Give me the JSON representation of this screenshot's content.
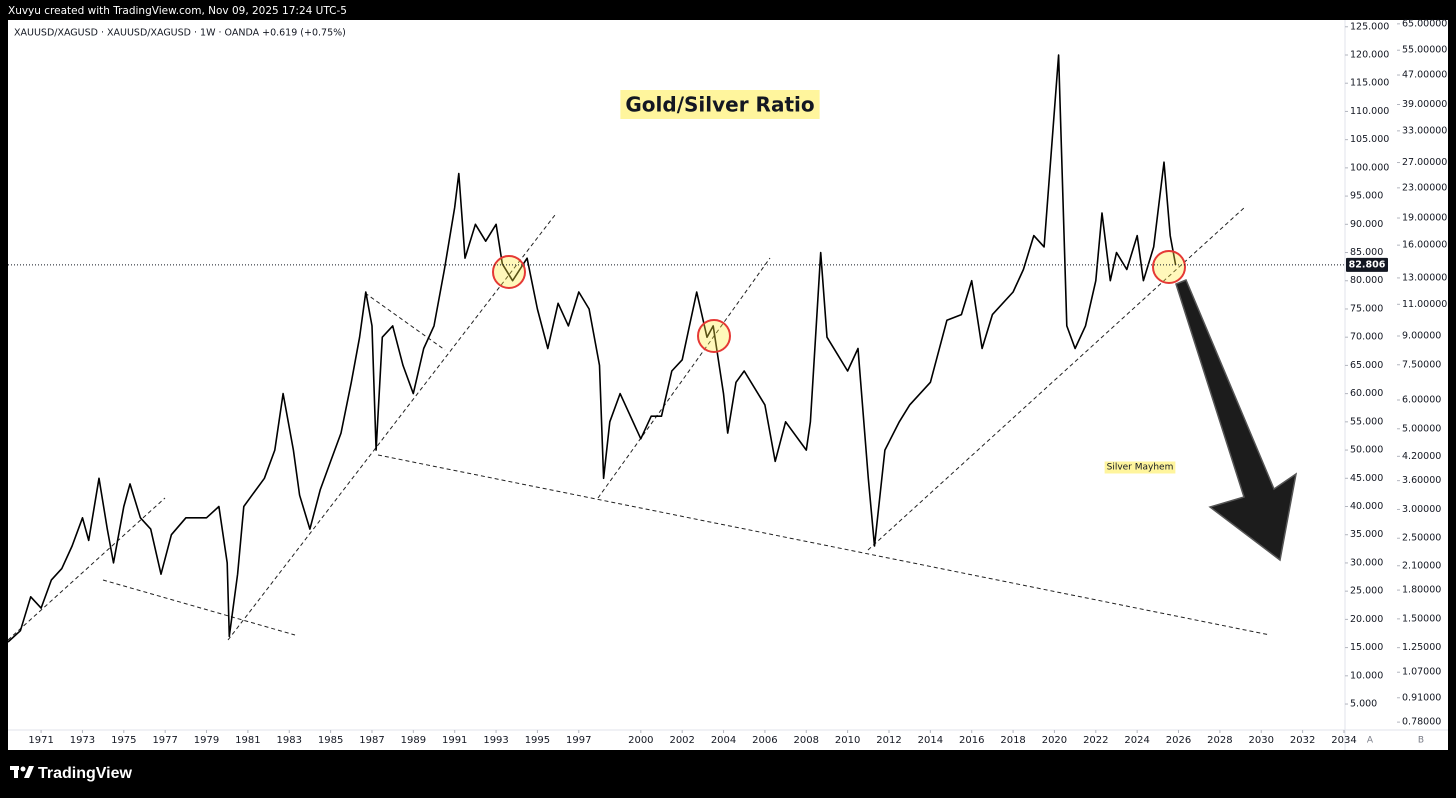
{
  "header": {
    "credit": "Xuvyu created with TradingView.com, Nov 09, 2025 17:24 UTC-5"
  },
  "chart_data": {
    "type": "line",
    "title": "Gold/Silver Ratio",
    "subtitle": "XAUUSD/XAGUSD · XAUUSD/XAGUSD · 1W · OANDA  +0.619 (+0.75%)",
    "annotations": [
      "Silver Mayhem"
    ],
    "scale_buttons": [
      "A",
      "B"
    ],
    "color": "#000000",
    "grid": false,
    "x": [
      1969.4,
      1970.0,
      1970.5,
      1971.0,
      1971.5,
      1972.0,
      1972.5,
      1973.0,
      1973.3,
      1973.8,
      1974.2,
      1974.5,
      1975.0,
      1975.3,
      1975.8,
      1976.3,
      1976.8,
      1977.3,
      1978.0,
      1979.0,
      1979.6,
      1980.0,
      1980.1,
      1980.5,
      1980.8,
      1981.2,
      1981.8,
      1982.3,
      1982.7,
      1983.2,
      1983.5,
      1984.0,
      1984.5,
      1985.0,
      1985.5,
      1986.0,
      1986.4,
      1986.7,
      1987.0,
      1987.2,
      1987.5,
      1988.0,
      1988.5,
      1989.0,
      1989.5,
      1990.0,
      1990.5,
      1991.0,
      1991.2,
      1991.5,
      1992.0,
      1992.5,
      1993.0,
      1993.3,
      1993.8,
      1994.5,
      1995.0,
      1995.5,
      1996.0,
      1996.5,
      1997.0,
      1997.5,
      1998.0,
      1998.2,
      1998.5,
      1999.0,
      2000.0,
      2000.5,
      2001.0,
      2001.5,
      2002.0,
      2002.7,
      2003.2,
      2003.5,
      2004.0,
      2004.2,
      2004.6,
      2005.0,
      2006.0,
      2006.5,
      2007.0,
      2008.0,
      2008.2,
      2008.7,
      2009.0,
      2009.5,
      2010.0,
      2010.5,
      2011.0,
      2011.3,
      2011.8,
      2012.5,
      2013.0,
      2014.0,
      2014.8,
      2015.5,
      2016.0,
      2016.5,
      2017.0,
      2018.0,
      2018.5,
      2019.0,
      2019.5,
      2020.2,
      2020.6,
      2021.0,
      2021.5,
      2022.0,
      2022.3,
      2022.7,
      2023.0,
      2023.5,
      2024.0,
      2024.3,
      2024.8,
      2025.3,
      2025.6,
      2025.86
    ],
    "values": [
      16,
      18,
      24,
      22,
      27,
      29,
      33,
      38,
      34,
      45,
      36,
      30,
      40,
      44,
      38,
      36,
      28,
      35,
      38,
      38,
      40,
      30,
      17,
      28,
      40,
      42,
      45,
      50,
      60,
      50,
      42,
      36,
      43,
      48,
      53,
      62,
      70,
      78,
      72,
      50,
      70,
      72,
      65,
      60,
      68,
      72,
      82,
      93,
      99,
      84,
      90,
      87,
      90,
      83,
      80,
      84,
      75,
      68,
      76,
      72,
      78,
      75,
      65,
      45,
      55,
      60,
      52,
      56,
      56,
      64,
      66,
      78,
      70,
      72,
      60,
      53,
      62,
      64,
      58,
      48,
      55,
      50,
      55,
      85,
      70,
      67,
      64,
      68,
      45,
      33,
      50,
      55,
      58,
      62,
      73,
      74,
      80,
      68,
      74,
      78,
      82,
      88,
      86,
      120,
      72,
      68,
      72,
      80,
      92,
      80,
      85,
      82,
      88,
      80,
      86,
      101,
      88,
      82.806
    ],
    "xlim": [
      1969.4,
      2034.05
    ],
    "xticks": [
      1971,
      1973,
      1975,
      1977,
      1979,
      1981,
      1983,
      1985,
      1987,
      1989,
      1991,
      1993,
      1995,
      1997,
      2000,
      2002,
      2004,
      2006,
      2008,
      2010,
      2012,
      2014,
      2016,
      2018,
      2020,
      2022,
      2024,
      2026,
      2028,
      2030,
      2032,
      2034
    ],
    "ylim": [
      0.4,
      126.2
    ],
    "yticks": [
      {
        "value": 5,
        "label": "5.000"
      },
      {
        "value": 10,
        "label": "10.000"
      },
      {
        "value": 15,
        "label": "15.000"
      },
      {
        "value": 20,
        "label": "20.000"
      },
      {
        "value": 25,
        "label": "25.000"
      },
      {
        "value": 30,
        "label": "30.000"
      },
      {
        "value": 35,
        "label": "35.000"
      },
      {
        "value": 40,
        "label": "40.000"
      },
      {
        "value": 45,
        "label": "45.000"
      },
      {
        "value": 50,
        "label": "50.000"
      },
      {
        "value": 55,
        "label": "55.000"
      },
      {
        "value": 60,
        "label": "60.000"
      },
      {
        "value": 65,
        "label": "65.000"
      },
      {
        "value": 70,
        "label": "70.000"
      },
      {
        "value": 75,
        "label": "75.000"
      },
      {
        "value": 80,
        "label": "80.000"
      },
      {
        "value": 85,
        "label": "85.000"
      },
      {
        "value": 90,
        "label": "90.000"
      },
      {
        "value": 95,
        "label": "95.000"
      },
      {
        "value": 100,
        "label": "100.000"
      },
      {
        "value": 105,
        "label": "105.000"
      },
      {
        "value": 110,
        "label": "110.000"
      },
      {
        "value": 115,
        "label": "115.000"
      },
      {
        "value": 120,
        "label": "120.000"
      },
      {
        "value": 125,
        "label": "125.000"
      }
    ],
    "y2scale": "log",
    "y2lim": [
      0.742,
      66.6
    ],
    "y2ticks": [
      {
        "value": 65,
        "label": "65.00000"
      },
      {
        "value": 55,
        "label": "55.00000"
      },
      {
        "value": 47,
        "label": "47.00000"
      },
      {
        "value": 39,
        "label": "39.00000"
      },
      {
        "value": 33,
        "label": "33.00000"
      },
      {
        "value": 27,
        "label": "27.00000"
      },
      {
        "value": 23,
        "label": "23.00000"
      },
      {
        "value": 19,
        "label": "19.00000"
      },
      {
        "value": 16,
        "label": "16.00000"
      },
      {
        "value": 13,
        "label": "13.00000"
      },
      {
        "value": 11,
        "label": "11.00000"
      },
      {
        "value": 9,
        "label": "9.00000"
      },
      {
        "value": 7.5,
        "label": "7.50000"
      },
      {
        "value": 6,
        "label": "6.00000"
      },
      {
        "value": 5,
        "label": "5.00000"
      },
      {
        "value": 4.2,
        "label": "4.20000"
      },
      {
        "value": 3.6,
        "label": "3.60000"
      },
      {
        "value": 3,
        "label": "3.00000"
      },
      {
        "value": 2.5,
        "label": "2.50000"
      },
      {
        "value": 2.1,
        "label": "2.10000"
      },
      {
        "value": 1.8,
        "label": "1.80000"
      },
      {
        "value": 1.5,
        "label": "1.50000"
      },
      {
        "value": 1.25,
        "label": "1.25000"
      },
      {
        "value": 1.07,
        "label": "1.07000"
      },
      {
        "value": 0.91,
        "label": "0.91000"
      },
      {
        "value": 0.78,
        "label": "0.78000"
      }
    ]
  },
  "footer": {
    "brand": "TradingView"
  }
}
